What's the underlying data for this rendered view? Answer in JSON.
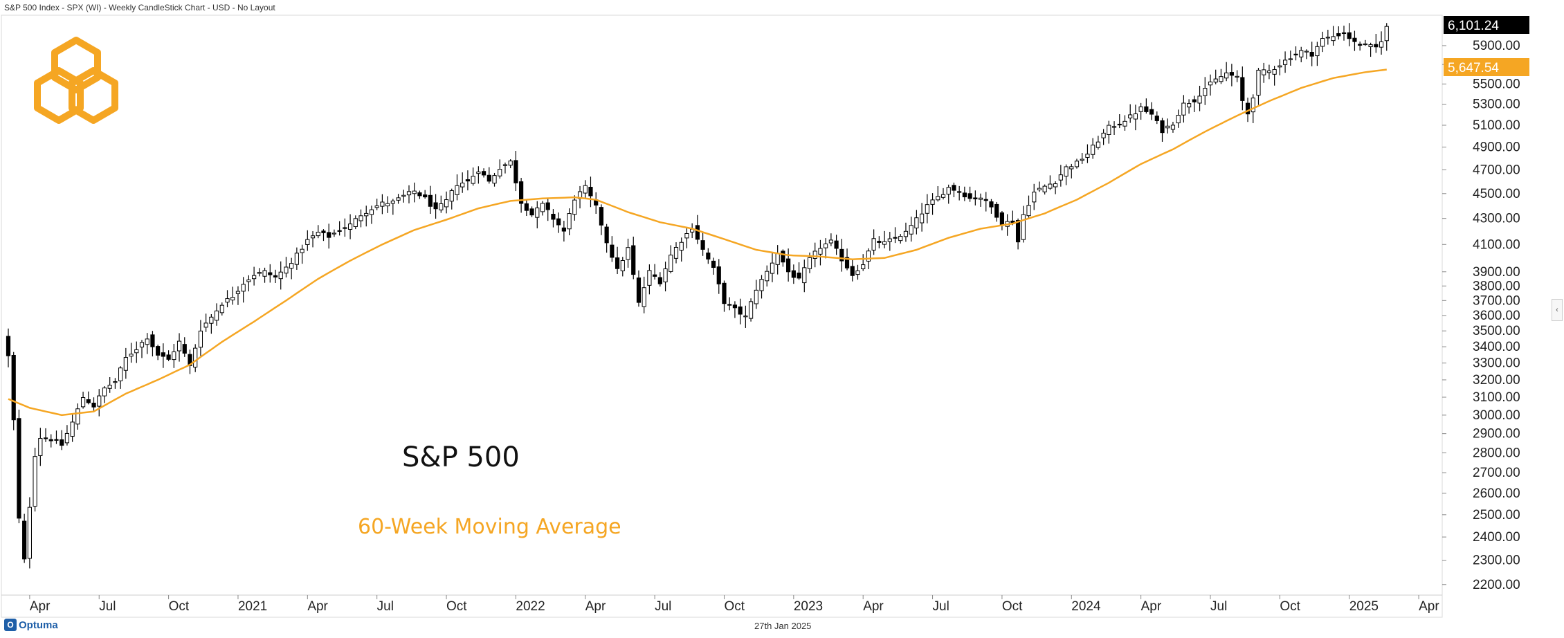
{
  "header": {
    "title": "S&P 500 Index - SPX (WI) - Weekly CandleStick Chart - USD - No Layout"
  },
  "footer": {
    "date": "27th Jan 2025",
    "brand": "Optuma"
  },
  "icons": {
    "logo": "hexagon-rings-logo",
    "collapse": "chevron-left-icon"
  },
  "colors": {
    "candle_up": "#ffffff",
    "candle_down": "#000000",
    "ma_line": "#f5a623",
    "price_tag_bg": "#000000",
    "ma_tag_bg": "#f5a623"
  },
  "chart_data": {
    "type": "candlestick",
    "timeframe": "Weekly",
    "y_scale": "log",
    "ylim": [
      2191,
      6128
    ],
    "y_ticks": [
      2200,
      2300,
      2400,
      2500,
      2600,
      2700,
      2800,
      2900,
      3000,
      3100,
      3200,
      3300,
      3400,
      3500,
      3600,
      3700,
      3800,
      3900,
      4100,
      4300,
      4500,
      4700,
      4900,
      5100,
      5300,
      5500,
      5700,
      5900
    ],
    "y_tick_labels": [
      "2200.00",
      "2300.00",
      "2400.00",
      "2500.00",
      "2600.00",
      "2700.00",
      "2800.00",
      "2900.00",
      "3000.00",
      "3100.00",
      "3200.00",
      "3300.00",
      "3400.00",
      "3500.00",
      "3600.00",
      "3700.00",
      "3800.00",
      "3900.00",
      "4100.00",
      "4300.00",
      "4500.00",
      "4700.00",
      "4900.00",
      "5100.00",
      "5300.00",
      "5500.00",
      "5700.00",
      "5900.00"
    ],
    "x_ticks": [
      {
        "label": "Apr",
        "week": 4
      },
      {
        "label": "Jul",
        "week": 17
      },
      {
        "label": "Oct",
        "week": 30
      },
      {
        "label": "2021",
        "week": 43
      },
      {
        "label": "Apr",
        "week": 56
      },
      {
        "label": "Jul",
        "week": 69
      },
      {
        "label": "Oct",
        "week": 82
      },
      {
        "label": "2022",
        "week": 95
      },
      {
        "label": "Apr",
        "week": 108
      },
      {
        "label": "Jul",
        "week": 121
      },
      {
        "label": "Oct",
        "week": 134
      },
      {
        "label": "2023",
        "week": 147
      },
      {
        "label": "Apr",
        "week": 160
      },
      {
        "label": "Jul",
        "week": 173
      },
      {
        "label": "Oct",
        "week": 186
      },
      {
        "label": "2024",
        "week": 199
      },
      {
        "label": "Apr",
        "week": 212
      },
      {
        "label": "Jul",
        "week": 225
      },
      {
        "label": "Oct",
        "week": 238
      },
      {
        "label": "2025",
        "week": 251
      },
      {
        "label": "Apr",
        "week": 264
      }
    ],
    "last_price": 6101.24,
    "last_price_label": "6,101.24",
    "ma_value": 5647.54,
    "ma_value_label": "5,647.54",
    "series": [
      {
        "name": "S&P 500"
      },
      {
        "name": "60-Week Moving Average"
      }
    ],
    "close_anchors": [
      {
        "week": 0,
        "close": 3340
      },
      {
        "week": 1,
        "close": 2970
      },
      {
        "week": 2,
        "close": 2480
      },
      {
        "week": 3,
        "close": 2300
      },
      {
        "week": 4,
        "close": 2540
      },
      {
        "week": 5,
        "close": 2790
      },
      {
        "week": 6,
        "close": 2880
      },
      {
        "week": 8,
        "close": 2870
      },
      {
        "week": 10,
        "close": 2840
      },
      {
        "week": 12,
        "close": 2960
      },
      {
        "week": 14,
        "close": 3100
      },
      {
        "week": 16,
        "close": 3050
      },
      {
        "week": 18,
        "close": 3150
      },
      {
        "week": 20,
        "close": 3190
      },
      {
        "week": 22,
        "close": 3330
      },
      {
        "week": 24,
        "close": 3390
      },
      {
        "week": 26,
        "close": 3460
      },
      {
        "week": 28,
        "close": 3350
      },
      {
        "week": 30,
        "close": 3320
      },
      {
        "week": 32,
        "close": 3430
      },
      {
        "week": 34,
        "close": 3280
      },
      {
        "week": 36,
        "close": 3510
      },
      {
        "week": 38,
        "close": 3590
      },
      {
        "week": 40,
        "close": 3680
      },
      {
        "week": 42,
        "close": 3730
      },
      {
        "week": 44,
        "close": 3820
      },
      {
        "week": 46,
        "close": 3880
      },
      {
        "week": 48,
        "close": 3900
      },
      {
        "week": 50,
        "close": 3860
      },
      {
        "week": 52,
        "close": 3930
      },
      {
        "week": 54,
        "close": 4020
      },
      {
        "week": 56,
        "close": 4130
      },
      {
        "week": 58,
        "close": 4190
      },
      {
        "week": 60,
        "close": 4160
      },
      {
        "week": 62,
        "close": 4210
      },
      {
        "week": 64,
        "close": 4250
      },
      {
        "week": 66,
        "close": 4330
      },
      {
        "week": 68,
        "close": 4380
      },
      {
        "week": 70,
        "close": 4420
      },
      {
        "week": 72,
        "close": 4430
      },
      {
        "week": 74,
        "close": 4480
      },
      {
        "week": 76,
        "close": 4520
      },
      {
        "week": 78,
        "close": 4460
      },
      {
        "week": 80,
        "close": 4360
      },
      {
        "week": 82,
        "close": 4440
      },
      {
        "week": 84,
        "close": 4580
      },
      {
        "week": 86,
        "close": 4600
      },
      {
        "week": 88,
        "close": 4700
      },
      {
        "week": 90,
        "close": 4600
      },
      {
        "week": 92,
        "close": 4720
      },
      {
        "week": 94,
        "close": 4770
      },
      {
        "week": 96,
        "close": 4430
      },
      {
        "week": 98,
        "close": 4330
      },
      {
        "week": 100,
        "close": 4410
      },
      {
        "week": 102,
        "close": 4300
      },
      {
        "week": 104,
        "close": 4200
      },
      {
        "week": 106,
        "close": 4460
      },
      {
        "week": 108,
        "close": 4550
      },
      {
        "week": 110,
        "close": 4390
      },
      {
        "week": 112,
        "close": 4120
      },
      {
        "week": 114,
        "close": 3910
      },
      {
        "week": 116,
        "close": 4070
      },
      {
        "week": 118,
        "close": 3680
      },
      {
        "week": 120,
        "close": 3900
      },
      {
        "week": 122,
        "close": 3830
      },
      {
        "week": 124,
        "close": 4020
      },
      {
        "week": 126,
        "close": 4130
      },
      {
        "week": 128,
        "close": 4230
      },
      {
        "week": 130,
        "close": 4060
      },
      {
        "week": 132,
        "close": 3920
      },
      {
        "week": 134,
        "close": 3690
      },
      {
        "week": 136,
        "close": 3640
      },
      {
        "week": 138,
        "close": 3590
      },
      {
        "week": 140,
        "close": 3780
      },
      {
        "week": 142,
        "close": 3900
      },
      {
        "week": 144,
        "close": 4040
      },
      {
        "week": 146,
        "close": 3900
      },
      {
        "week": 148,
        "close": 3840
      },
      {
        "week": 150,
        "close": 3990
      },
      {
        "week": 152,
        "close": 4080
      },
      {
        "week": 154,
        "close": 4120
      },
      {
        "week": 156,
        "close": 3990
      },
      {
        "week": 158,
        "close": 3880
      },
      {
        "week": 160,
        "close": 3960
      },
      {
        "week": 162,
        "close": 4130
      },
      {
        "week": 164,
        "close": 4110
      },
      {
        "week": 166,
        "close": 4150
      },
      {
        "week": 168,
        "close": 4190
      },
      {
        "week": 170,
        "close": 4290
      },
      {
        "week": 172,
        "close": 4400
      },
      {
        "week": 174,
        "close": 4470
      },
      {
        "week": 176,
        "close": 4550
      },
      {
        "week": 178,
        "close": 4520
      },
      {
        "week": 180,
        "close": 4460
      },
      {
        "week": 182,
        "close": 4470
      },
      {
        "week": 184,
        "close": 4390
      },
      {
        "week": 186,
        "close": 4260
      },
      {
        "week": 188,
        "close": 4280
      },
      {
        "week": 189,
        "close": 4120
      },
      {
        "week": 190,
        "close": 4330
      },
      {
        "week": 192,
        "close": 4510
      },
      {
        "week": 194,
        "close": 4560
      },
      {
        "week": 196,
        "close": 4600
      },
      {
        "week": 198,
        "close": 4720
      },
      {
        "week": 200,
        "close": 4760
      },
      {
        "week": 202,
        "close": 4840
      },
      {
        "week": 204,
        "close": 4960
      },
      {
        "week": 206,
        "close": 5080
      },
      {
        "week": 208,
        "close": 5120
      },
      {
        "week": 210,
        "close": 5180
      },
      {
        "week": 212,
        "close": 5260
      },
      {
        "week": 214,
        "close": 5200
      },
      {
        "week": 216,
        "close": 5050
      },
      {
        "week": 218,
        "close": 5120
      },
      {
        "week": 220,
        "close": 5300
      },
      {
        "week": 222,
        "close": 5340
      },
      {
        "week": 224,
        "close": 5460
      },
      {
        "week": 226,
        "close": 5540
      },
      {
        "week": 228,
        "close": 5610
      },
      {
        "week": 230,
        "close": 5560
      },
      {
        "week": 231,
        "close": 5330
      },
      {
        "week": 232,
        "close": 5210
      },
      {
        "week": 233,
        "close": 5380
      },
      {
        "week": 234,
        "close": 5620
      },
      {
        "week": 236,
        "close": 5630
      },
      {
        "week": 238,
        "close": 5700
      },
      {
        "week": 240,
        "close": 5780
      },
      {
        "week": 242,
        "close": 5840
      },
      {
        "week": 244,
        "close": 5810
      },
      {
        "week": 246,
        "close": 5970
      },
      {
        "week": 248,
        "close": 6000
      },
      {
        "week": 250,
        "close": 6040
      },
      {
        "week": 252,
        "close": 5930
      },
      {
        "week": 254,
        "close": 5900
      },
      {
        "week": 256,
        "close": 5880
      },
      {
        "week": 257,
        "close": 5960
      },
      {
        "week": 258,
        "close": 6101
      }
    ],
    "ma_anchors": [
      {
        "week": 0,
        "value": 3090
      },
      {
        "week": 4,
        "value": 3040
      },
      {
        "week": 10,
        "value": 3000
      },
      {
        "week": 16,
        "value": 3020
      },
      {
        "week": 22,
        "value": 3120
      },
      {
        "week": 28,
        "value": 3200
      },
      {
        "week": 34,
        "value": 3290
      },
      {
        "week": 40,
        "value": 3430
      },
      {
        "week": 46,
        "value": 3560
      },
      {
        "week": 52,
        "value": 3700
      },
      {
        "week": 58,
        "value": 3850
      },
      {
        "week": 64,
        "value": 3980
      },
      {
        "week": 70,
        "value": 4100
      },
      {
        "week": 76,
        "value": 4210
      },
      {
        "week": 82,
        "value": 4290
      },
      {
        "week": 88,
        "value": 4380
      },
      {
        "week": 94,
        "value": 4440
      },
      {
        "week": 100,
        "value": 4460
      },
      {
        "week": 106,
        "value": 4470
      },
      {
        "week": 110,
        "value": 4450
      },
      {
        "week": 116,
        "value": 4350
      },
      {
        "week": 122,
        "value": 4270
      },
      {
        "week": 128,
        "value": 4220
      },
      {
        "week": 134,
        "value": 4140
      },
      {
        "week": 140,
        "value": 4060
      },
      {
        "week": 146,
        "value": 4020
      },
      {
        "week": 152,
        "value": 4010
      },
      {
        "week": 158,
        "value": 3990
      },
      {
        "week": 164,
        "value": 4000
      },
      {
        "week": 170,
        "value": 4060
      },
      {
        "week": 176,
        "value": 4150
      },
      {
        "week": 182,
        "value": 4220
      },
      {
        "week": 188,
        "value": 4260
      },
      {
        "week": 194,
        "value": 4340
      },
      {
        "week": 200,
        "value": 4450
      },
      {
        "week": 206,
        "value": 4590
      },
      {
        "week": 212,
        "value": 4750
      },
      {
        "week": 218,
        "value": 4880
      },
      {
        "week": 224,
        "value": 5040
      },
      {
        "week": 230,
        "value": 5190
      },
      {
        "week": 236,
        "value": 5330
      },
      {
        "week": 242,
        "value": 5460
      },
      {
        "week": 248,
        "value": 5560
      },
      {
        "week": 254,
        "value": 5620
      },
      {
        "week": 258,
        "value": 5647
      }
    ]
  },
  "labels": {
    "series_main": "S&P 500",
    "series_ma": "60-Week Moving Average"
  }
}
